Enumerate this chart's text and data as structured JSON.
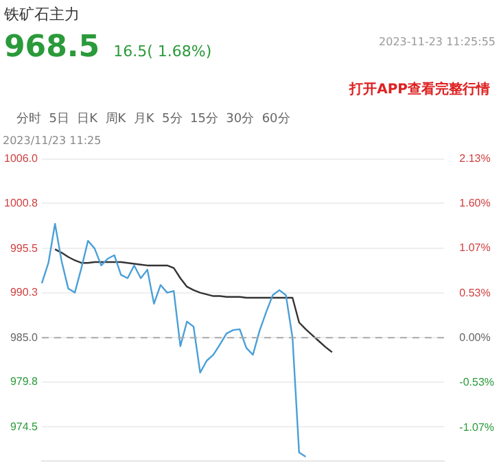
{
  "chart_data": {
    "type": "line",
    "title": "铁矿石主力",
    "subtitle": "968.5  16.5( 1.68%)",
    "annotations": [
      "2023-11-23 11:25:55",
      "打开APP查看完整行情",
      "分时  5日  日K  周K  月K  5分  15分  30分  60分",
      "2023/11/23 11:25"
    ],
    "categories": [
      null,
      null,
      null,
      null,
      null,
      null,
      null,
      null,
      null,
      null,
      null,
      null,
      null,
      null,
      null,
      null,
      null,
      null,
      null,
      null,
      null,
      null,
      null,
      null,
      null,
      null,
      null,
      null,
      null,
      null,
      null,
      null,
      null,
      null,
      null,
      null,
      null,
      null,
      null,
      null,
      null,
      null,
      null,
      null,
      null,
      null,
      null,
      null,
      null,
      null,
      null,
      null,
      null,
      null,
      null,
      null,
      null,
      null,
      null,
      null,
      null,
      null
    ],
    "series": [
      {
        "color": "#4a9fd8",
        "values": [
          991.4,
          993.8,
          998.4,
          994.0,
          990.8,
          990.3,
          993.2,
          996.4,
          995.5,
          993.5,
          994.3,
          994.7,
          992.4,
          992.0,
          993.5,
          992.0,
          993.0,
          989.0,
          991.2,
          990.3,
          990.5,
          984.0,
          986.9,
          986.3,
          980.9,
          982.3,
          983.0,
          984.2,
          985.5,
          985.9,
          986.0,
          983.8,
          983.0,
          985.8,
          988.0,
          990.0,
          990.6,
          990.0,
          985.0,
          971.5,
          971.0,
          null,
          null,
          null,
          null,
          null,
          null,
          null,
          null,
          null,
          null,
          null,
          null,
          null,
          null,
          null,
          null,
          null,
          null,
          null,
          null,
          null
        ]
      },
      {
        "color": "#333333",
        "values": [
          null,
          null,
          995.4,
          995.0,
          994.5,
          994.1,
          993.8,
          993.8,
          993.9,
          993.9,
          993.9,
          993.9,
          993.9,
          993.8,
          993.7,
          993.6,
          993.5,
          993.5,
          993.5,
          993.5,
          993.2,
          992.0,
          991.0,
          990.6,
          990.3,
          990.1,
          989.9,
          989.9,
          989.8,
          989.8,
          989.8,
          989.7,
          989.7,
          989.7,
          989.7,
          989.7,
          989.7,
          989.7,
          989.7,
          986.8,
          986.0,
          985.3,
          984.6,
          983.9,
          983.3,
          null,
          null,
          null,
          null,
          null,
          null,
          null,
          null,
          null,
          null,
          null,
          null,
          null,
          null,
          null,
          null,
          null
        ]
      }
    ],
    "ylim": [
      970.5,
      1006.0
    ],
    "yticks": [
      {
        "value": 974.5,
        "label": "974.5"
      },
      {
        "value": 979.8,
        "label": "979.8"
      },
      {
        "value": 985.0,
        "label": "985.0"
      },
      {
        "value": 990.3,
        "label": "990.3"
      },
      {
        "value": 995.5,
        "label": "995.5"
      },
      {
        "value": 1000.8,
        "label": "1000.8"
      },
      {
        "value": 1006.0,
        "label": "1006.0"
      }
    ],
    "y2lim": [
      -1.47,
      2.13
    ],
    "y2ticks": [
      {
        "value": -1.07,
        "label": "-1.07%"
      },
      {
        "value": -0.53,
        "label": "-0.53%"
      },
      {
        "value": 0,
        "label": "0.00%"
      },
      {
        "value": 0.53,
        "label": "0.53%"
      },
      {
        "value": 1.07,
        "label": "1.07%"
      },
      {
        "value": 1.6,
        "label": "1.60%"
      },
      {
        "value": 2.13,
        "label": "2.13%"
      }
    ],
    "ref_lines": [
      {
        "axis": "y",
        "value": 985.0,
        "color": "#aaaaaa",
        "line_style": "dashed"
      }
    ],
    "grid": "y",
    "legend": false,
    "marker": "none",
    "line_style": "solid",
    "tick_labels": "y"
  }
}
